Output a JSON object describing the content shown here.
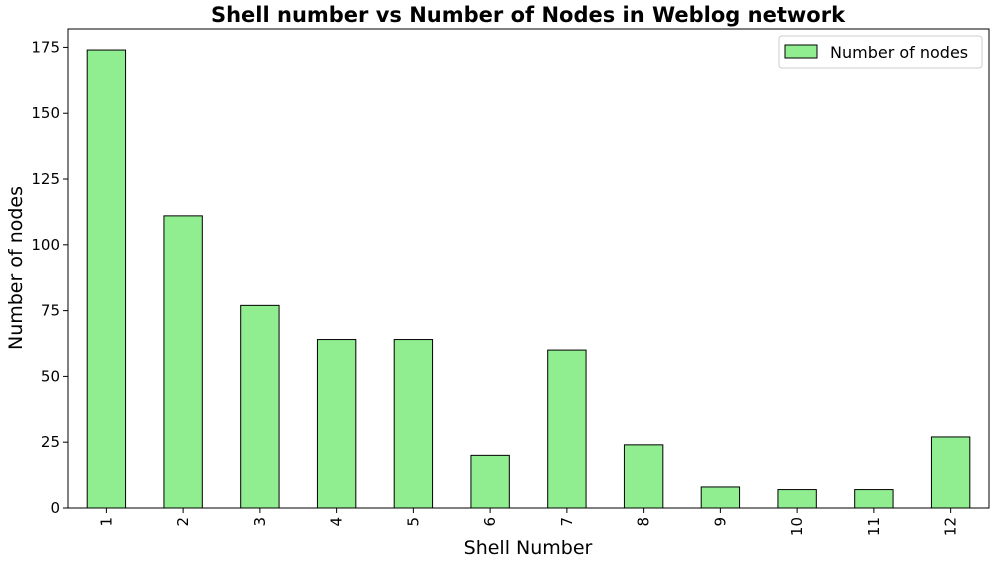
{
  "chart_data": {
    "type": "bar",
    "title": "Shell number vs Number of Nodes in Weblog network",
    "xlabel": "Shell Number",
    "ylabel": "Number of nodes",
    "categories": [
      "1",
      "2",
      "3",
      "4",
      "5",
      "6",
      "7",
      "8",
      "9",
      "10",
      "11",
      "12"
    ],
    "series": [
      {
        "name": "Number of nodes",
        "values": [
          174,
          111,
          77,
          64,
          64,
          20,
          60,
          24,
          8,
          7,
          7,
          27
        ]
      }
    ],
    "ylim": [
      0,
      182
    ],
    "yticks": [
      0,
      25,
      50,
      75,
      100,
      125,
      150,
      175
    ],
    "grid": false,
    "legend_position": "top-right",
    "colors": {
      "bar_fill": "#90ee90",
      "bar_edge": "#000000"
    }
  }
}
